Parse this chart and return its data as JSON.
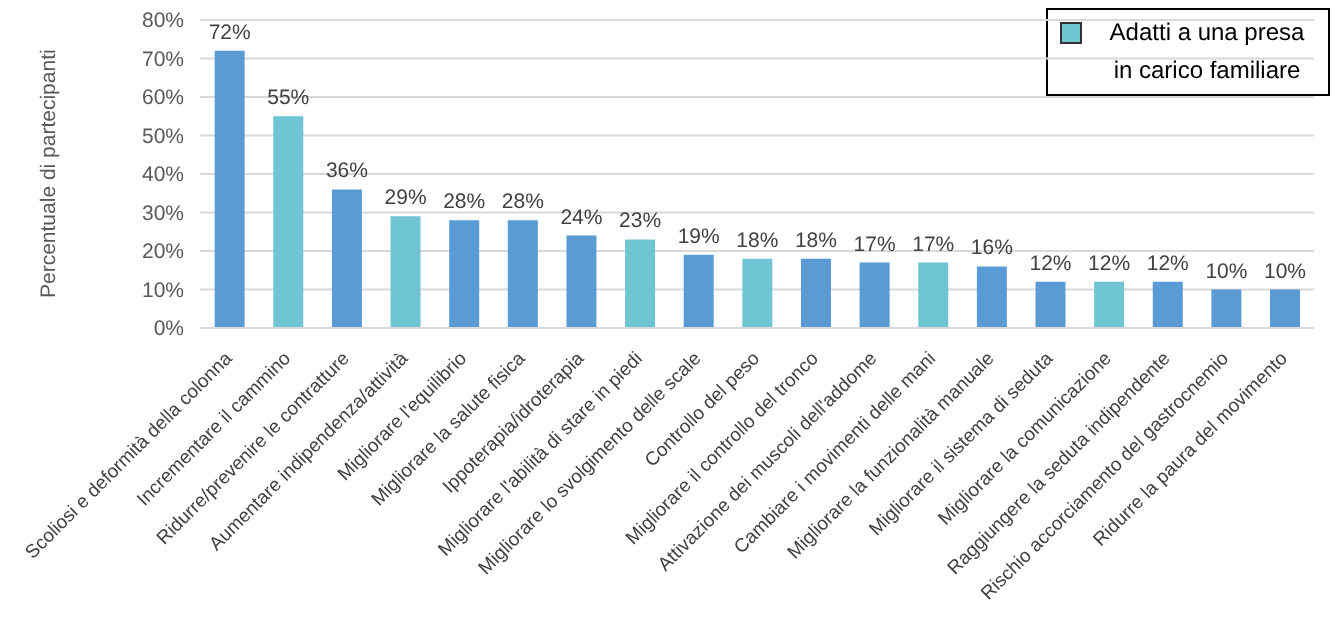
{
  "chart_data": {
    "type": "bar",
    "ylabel": "Percentuale di partecipanti",
    "categories": [
      "Scoliosi e deformità della colonna",
      "Incrementare il cammino",
      "Ridurre/prevenire le contratture",
      "Aumentare indipendenza/attività",
      "Migliorare l'equilibrio",
      "Migliorare la salute fisica",
      "Ippoterapia/idroterapia",
      "Migliorare l'abilità di stare in piedi",
      "Migliorare lo svolgimento delle scale",
      "Controllo del peso",
      "Migliorare il controllo del tronco",
      "Attivazione dei muscoli dell'addome",
      "Cambiare i movimenti delle mani",
      "Migliorare la funzionalità manuale",
      "Migliorare il sistema di seduta",
      "Migliorare la comunicazione",
      "Raggiungere la seduta indipendente",
      "Rischio accorciamento del gastrocnemio",
      "Ridurre la paura del movimento"
    ],
    "series": [
      {
        "color": "#5b9bd5",
        "values": [
          72,
          null,
          36,
          null,
          28,
          28,
          24,
          null,
          19,
          null,
          18,
          17,
          null,
          16,
          12,
          null,
          12,
          10,
          10
        ],
        "value_labels": [
          "72%",
          null,
          "36%",
          null,
          "28%",
          "28%",
          "24%",
          null,
          "19%",
          null,
          "18%",
          "17%",
          null,
          "16%",
          "12%",
          null,
          "12%",
          "10%",
          "10%"
        ]
      },
      {
        "name": "Adatti a una presa in carico familiare",
        "color": "#70c5d4",
        "values": [
          null,
          55,
          null,
          29,
          null,
          null,
          null,
          23,
          null,
          18,
          null,
          null,
          17,
          null,
          null,
          12,
          null,
          null,
          null
        ],
        "value_labels": [
          null,
          "55%",
          null,
          "29%",
          null,
          null,
          null,
          "23%",
          null,
          "18%",
          null,
          null,
          "17%",
          null,
          null,
          "12%",
          null,
          null,
          null
        ]
      }
    ],
    "stacked": true,
    "ylim": [
      0,
      80
    ],
    "yticks": [
      {
        "value": 0,
        "label": "0%"
      },
      {
        "value": 10,
        "label": "10%"
      },
      {
        "value": 20,
        "label": "20%"
      },
      {
        "value": 30,
        "label": "30%"
      },
      {
        "value": 40,
        "label": "40%"
      },
      {
        "value": 50,
        "label": "50%"
      },
      {
        "value": 60,
        "label": "60%"
      },
      {
        "value": 70,
        "label": "70%"
      },
      {
        "value": 80,
        "label": "80%"
      }
    ],
    "grid": "y",
    "legend": "top right"
  }
}
